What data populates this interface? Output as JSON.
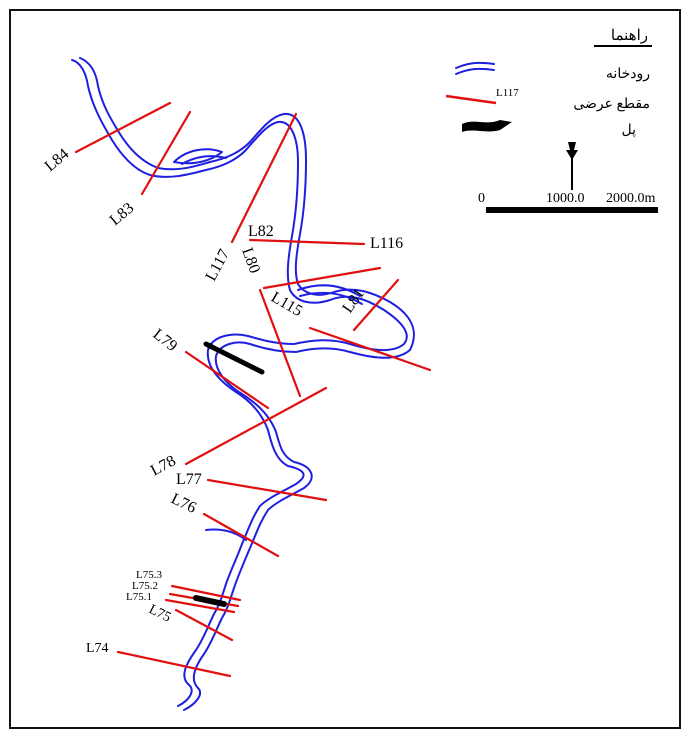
{
  "map": {
    "colors": {
      "river": "#1f1fe0",
      "section": "#e01010",
      "bridge": "#000000",
      "frame": "#111111"
    },
    "legend": {
      "title": "راهنما",
      "river": "رودخانه",
      "cross_section": "مقطع عرضی",
      "cross_section_sample": "L117",
      "bridge": "پل"
    },
    "north_arrow": {
      "icon": "north-arrow-icon"
    },
    "scale_bar": {
      "start": "0",
      "mid": "1000.0",
      "end": "2000.0m"
    },
    "sections": [
      "L84",
      "L83",
      "L117",
      "L82",
      "L116",
      "L80",
      "L115",
      "L81",
      "L79",
      "L78",
      "L77",
      "L76",
      "L75.3",
      "L75.2",
      "L75.1",
      "L75",
      "L74"
    ]
  }
}
